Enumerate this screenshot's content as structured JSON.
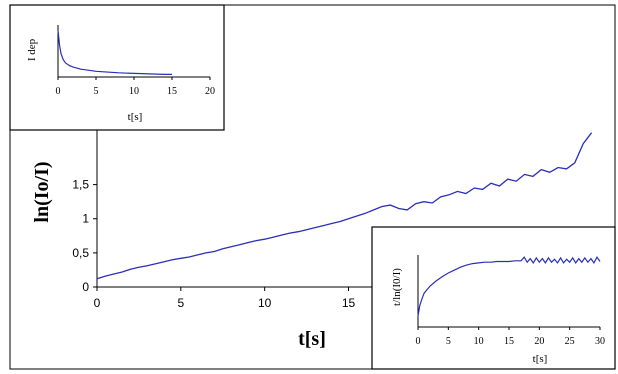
{
  "chart_data": [
    {
      "id": "main",
      "type": "line",
      "xlabel": "t[s]",
      "ylabel": "ln(Io/I)",
      "xlim": [
        0,
        30
      ],
      "ylim": [
        0,
        2.3
      ],
      "x_ticks": [
        "0",
        "5",
        "10",
        "15"
      ],
      "y_ticks": [
        "0",
        "0,5",
        "1",
        "1,5"
      ],
      "x_tick_values": [
        0,
        5,
        10,
        15
      ],
      "y_tick_values": [
        0,
        0.5,
        1,
        1.5
      ],
      "color": "#2b2fb8",
      "series": [
        {
          "x": [
            0,
            0.5,
            1,
            1.5,
            2,
            2.5,
            3,
            3.5,
            4,
            4.5,
            5,
            5.5,
            6,
            6.5,
            7,
            7.5,
            8,
            8.5,
            9,
            9.5,
            10,
            10.5,
            11,
            11.5,
            12,
            12.5,
            13,
            13.5,
            14,
            14.5,
            15,
            15.5,
            16,
            16.5,
            17,
            17.5,
            18,
            18.5,
            19,
            19.5,
            20,
            20.5,
            21,
            21.5,
            22,
            22.5,
            23,
            23.5,
            24,
            24.5,
            25,
            25.5,
            26,
            26.5,
            27,
            27.5,
            28,
            28.5,
            29,
            29.5
          ],
          "values": [
            0.12,
            0.16,
            0.19,
            0.22,
            0.26,
            0.29,
            0.31,
            0.34,
            0.37,
            0.4,
            0.42,
            0.44,
            0.47,
            0.5,
            0.52,
            0.56,
            0.59,
            0.62,
            0.65,
            0.68,
            0.7,
            0.73,
            0.76,
            0.79,
            0.81,
            0.84,
            0.87,
            0.9,
            0.93,
            0.96,
            1.0,
            1.04,
            1.08,
            1.13,
            1.18,
            1.2,
            1.15,
            1.13,
            1.22,
            1.25,
            1.23,
            1.32,
            1.35,
            1.4,
            1.37,
            1.45,
            1.43,
            1.52,
            1.48,
            1.58,
            1.55,
            1.65,
            1.62,
            1.72,
            1.68,
            1.75,
            1.73,
            1.82,
            2.1,
            2.26
          ]
        }
      ]
    },
    {
      "id": "inset-top-left",
      "type": "line",
      "xlabel": "t[s]",
      "ylabel": "I dep",
      "xlim": [
        0,
        20
      ],
      "ylim": [
        0,
        1
      ],
      "x_ticks": [
        "0",
        "5",
        "10",
        "15",
        "20"
      ],
      "x_tick_values": [
        0,
        5,
        10,
        15,
        20
      ],
      "color": "#2b2fb8",
      "series": [
        {
          "x": [
            0,
            0.2,
            0.4,
            0.7,
            1,
            1.5,
            2,
            3,
            4,
            5,
            6,
            8,
            10,
            12,
            14,
            15
          ],
          "values": [
            0.9,
            0.62,
            0.45,
            0.33,
            0.27,
            0.22,
            0.19,
            0.15,
            0.13,
            0.11,
            0.1,
            0.08,
            0.07,
            0.06,
            0.05,
            0.05
          ]
        }
      ]
    },
    {
      "id": "inset-bottom-right",
      "type": "line",
      "xlabel": "t[s]",
      "ylabel": "t/ln(I0/I)",
      "xlim": [
        0,
        30
      ],
      "ylim": [
        0,
        1
      ],
      "x_ticks": [
        "0",
        "5",
        "10",
        "15",
        "20",
        "25",
        "30"
      ],
      "x_tick_values": [
        0,
        5,
        10,
        15,
        20,
        25,
        30
      ],
      "color": "#2b2fb8",
      "series": [
        {
          "x": [
            0,
            0.3,
            0.7,
            1,
            2,
            3,
            4,
            5,
            6,
            7,
            8,
            9,
            10,
            11,
            12,
            13,
            14,
            15,
            16,
            17,
            17.5,
            18,
            18.5,
            19,
            19.5,
            20,
            20.5,
            21,
            21.5,
            22,
            22.5,
            23,
            23.5,
            24,
            24.5,
            25,
            25.5,
            26,
            26.5,
            27,
            27.5,
            28,
            28.5,
            29,
            29.5,
            30
          ],
          "values": [
            0.15,
            0.3,
            0.4,
            0.47,
            0.57,
            0.64,
            0.7,
            0.75,
            0.79,
            0.83,
            0.86,
            0.88,
            0.89,
            0.9,
            0.9,
            0.91,
            0.91,
            0.91,
            0.92,
            0.92,
            0.97,
            0.9,
            0.95,
            0.89,
            0.96,
            0.9,
            0.95,
            0.89,
            0.96,
            0.9,
            0.94,
            0.89,
            0.96,
            0.89,
            0.94,
            0.9,
            0.96,
            0.89,
            0.95,
            0.9,
            0.96,
            0.9,
            0.95,
            0.89,
            0.97,
            0.91
          ]
        }
      ]
    }
  ]
}
